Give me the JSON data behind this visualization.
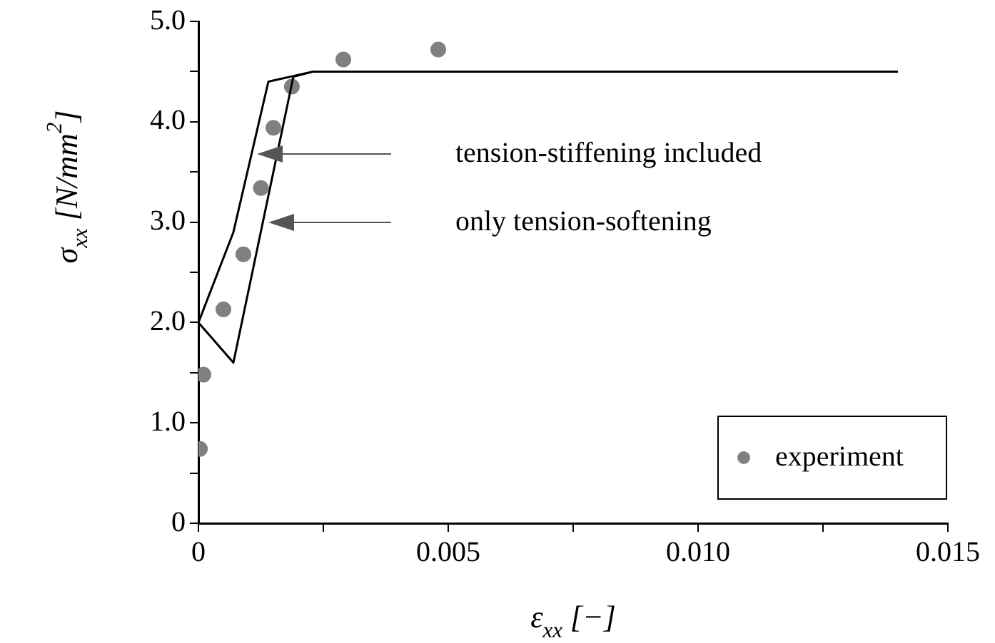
{
  "chart_data": {
    "type": "line",
    "xlabel": "ε$_{xx}$ [−]",
    "ylabel": "σ$_{xx}$ [N/mm$^{2}$]",
    "xlim": [
      0,
      0.015
    ],
    "xticks": [
      0,
      {
        "value": 0.0025,
        "label": null
      },
      {
        "value": 0.005,
        "label": "0.005"
      },
      {
        "value": 0.0075,
        "label": null
      },
      {
        "value": 0.01,
        "label": "0.010"
      },
      {
        "value": 0.0125,
        "label": null
      },
      {
        "value": 0.015,
        "label": "0.015"
      }
    ],
    "ylim": [
      0,
      5
    ],
    "yticks": [
      0,
      {
        "value": 0.5,
        "label": null
      },
      {
        "value": 1,
        "label": "1.0"
      },
      {
        "value": 1.5,
        "label": null
      },
      {
        "value": 2,
        "label": "2.0"
      },
      {
        "value": 2.5,
        "label": null
      },
      {
        "value": 3,
        "label": "3.0"
      },
      {
        "value": 3.5,
        "label": null
      },
      {
        "value": 4,
        "label": "4.0"
      },
      {
        "value": 4.5,
        "label": null
      },
      {
        "value": 5,
        "label": "5.0"
      }
    ],
    "grid": false,
    "legend": "bottom right",
    "series": [
      {
        "color": "#000000",
        "x": [
          0,
          0.0007,
          0.0014,
          0.0023,
          0.014
        ],
        "values": [
          2.0,
          2.9,
          4.4,
          4.5,
          4.5
        ]
      },
      {
        "color": "#000000",
        "x": [
          0,
          0.0007,
          0.0019,
          0.0023
        ],
        "values": [
          2.0,
          1.6,
          4.45,
          4.5
        ]
      },
      {
        "type": "scatter",
        "name": "experiment",
        "color": "#808080",
        "marker": "circle",
        "x": [
          3e-05,
          0.0001,
          0.0005,
          0.0009,
          0.00125,
          0.0015,
          0.00187,
          0.0029,
          0.0048
        ],
        "values": [
          0.74,
          1.48,
          2.13,
          2.68,
          3.34,
          3.94,
          4.35,
          4.62,
          4.72
        ]
      }
    ],
    "annotations": [
      "tension-stiffening included",
      "only tension-softening"
    ]
  }
}
